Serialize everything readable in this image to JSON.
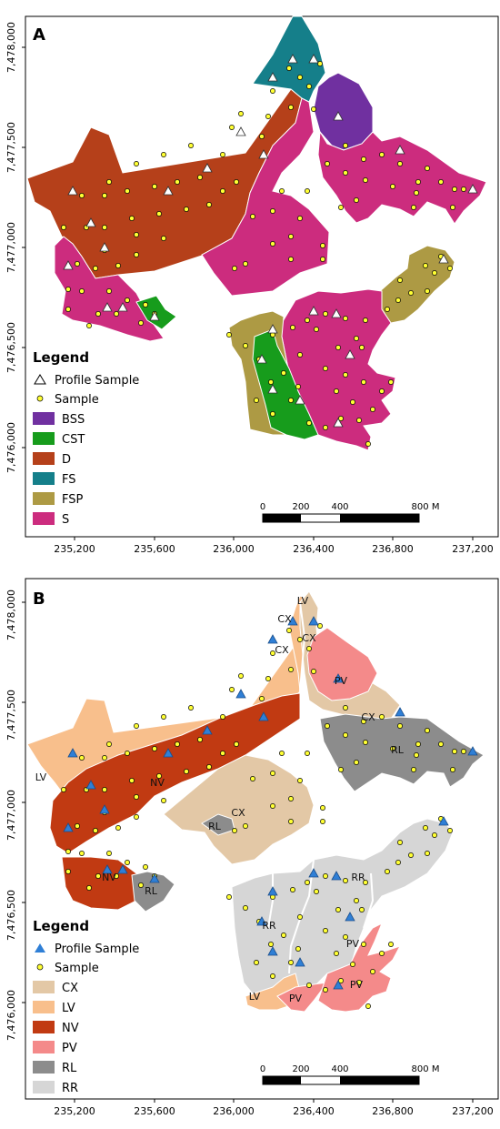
{
  "colors": {
    "BSS": "#7030a0",
    "CST": "#179c1c",
    "D": "#b5401a",
    "FS": "#157f8a",
    "FSP": "#ad9a44",
    "S": "#cc2c7e",
    "CX": "#e3c8a6",
    "LV": "#f8bf8c",
    "NV": "#c13a12",
    "PV": "#f48a8a",
    "RL": "#8c8c8c",
    "RR": "#d6d6d6",
    "sample": "#ffff33",
    "profile_b": "#2f7fd6"
  },
  "icons": {
    "profile_a": "open-triangle-icon",
    "profile_b": "blue-triangle-icon",
    "sample": "yellow-dot-icon"
  },
  "panelA": {
    "label": "A",
    "y_ticks": [
      "7,478,000",
      "7,477,500",
      "7,477,000",
      "7,476,500",
      "7,476,000"
    ],
    "x_ticks": [
      "235,200",
      "235,600",
      "236,000",
      "236,400",
      "236,800",
      "237,200"
    ],
    "legend": {
      "title": "Legend",
      "profile": "Profile Sample",
      "sample": "Sample",
      "classes": [
        "BSS",
        "CST",
        "D",
        "FS",
        "FSP",
        "S"
      ]
    },
    "scale": {
      "labels": [
        "0",
        "200",
        "400",
        "800 M"
      ]
    }
  },
  "panelB": {
    "label": "B",
    "y_ticks": [
      "7,478,000",
      "7,477,500",
      "7,477,000",
      "7,476,500",
      "7,476,000"
    ],
    "x_ticks": [
      "235,200",
      "235,600",
      "236,000",
      "236,400",
      "236,800",
      "237,200"
    ],
    "legend": {
      "title": "Legend",
      "profile": "Profile Sample",
      "sample": "Sample",
      "classes": [
        "CX",
        "LV",
        "NV",
        "PV",
        "RL",
        "RR"
      ]
    },
    "scale": {
      "labels": [
        "0",
        "200",
        "400",
        "800 M"
      ]
    },
    "map_labels": [
      {
        "text": "LV"
      },
      {
        "text": "CX"
      },
      {
        "text": "CX"
      },
      {
        "text": "CX"
      },
      {
        "text": "PV"
      },
      {
        "text": "CX"
      },
      {
        "text": "RL"
      },
      {
        "text": "LV"
      },
      {
        "text": "NV"
      },
      {
        "text": "CX"
      },
      {
        "text": "RL"
      },
      {
        "text": "NV"
      },
      {
        "text": "RL"
      },
      {
        "text": "RR"
      },
      {
        "text": "RR"
      },
      {
        "text": "PV"
      },
      {
        "text": "LV"
      },
      {
        "text": "PV"
      },
      {
        "text": "PV"
      }
    ]
  }
}
